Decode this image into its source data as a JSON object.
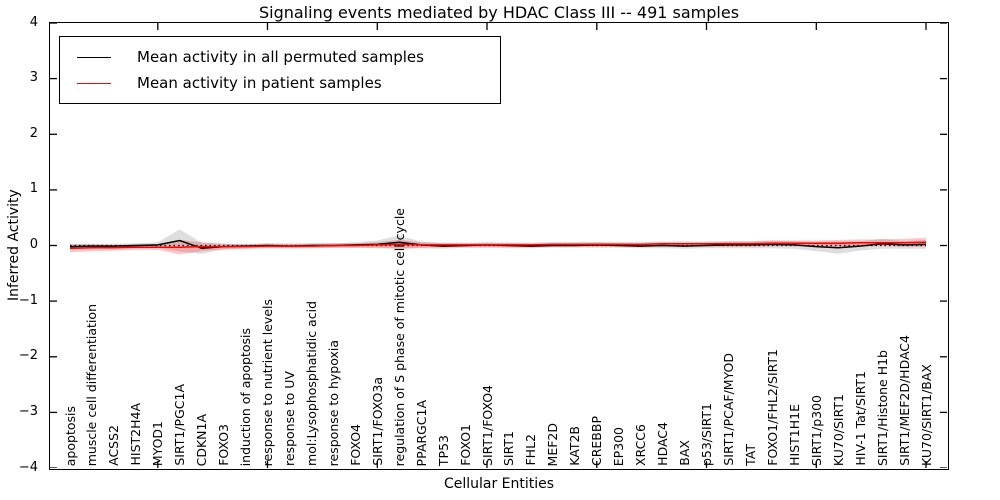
{
  "chart_data": {
    "type": "line",
    "title": "Signaling events mediated by HDAC Class III -- 491 samples",
    "xlabel": "Cellular Entities",
    "ylabel": "Inferred Activity",
    "ylim": [
      -4,
      4
    ],
    "yticks": [
      4,
      3,
      2,
      1,
      0,
      -1,
      -2,
      -3,
      -4
    ],
    "xtick_every": 5,
    "grid": false,
    "legend_position": "upper left",
    "zero_line": {
      "style": "dotted",
      "color": "#000000",
      "y": 0
    },
    "categories": [
      "apoptosis",
      "muscle cell differentiation",
      "ACSS2",
      "HIST2H4A",
      "MYOD1",
      "SIRT1/PGC1A",
      "CDKN1A",
      "FOXO3",
      "induction of apoptosis",
      "response to nutrient levels",
      "response to UV",
      "mol:Lysophosphatidic acid",
      "response to hypoxia",
      "FOXO4",
      "SIRT1/FOXO3a",
      "regulation of S phase of mitotic cell cycle",
      "PPARGC1A",
      "TP53",
      "FOXO1",
      "SIRT1/FOXO4",
      "SIRT1",
      "FHL2",
      "MEF2D",
      "KAT2B",
      "CREBBP",
      "EP300",
      "XRCC6",
      "HDAC4",
      "BAX",
      "p53/SIRT1",
      "SIRT1/PCAF/MYOD",
      "TAT",
      "FOXO1/FHL2/SIRT1",
      "HIST1H1E",
      "SIRT1/p300",
      "KU70/SIRT1",
      "HIV-1 Tat/SIRT1",
      "SIRT1/Histone H1b",
      "SIRT1/MEF2D/HDAC4",
      "KU70/SIRT1/BAX"
    ],
    "series": [
      {
        "name": "Mean activity in all permuted samples",
        "color": "#000000",
        "band_color": "rgba(0,0,0,0.13)",
        "values": [
          -0.02,
          -0.01,
          -0.01,
          0.0,
          0.01,
          0.09,
          -0.05,
          -0.02,
          -0.01,
          0.0,
          -0.01,
          0.0,
          0.0,
          0.01,
          0.02,
          0.06,
          0.01,
          -0.01,
          0.0,
          0.01,
          0.0,
          -0.01,
          0.0,
          0.0,
          0.01,
          0.0,
          -0.01,
          0.0,
          -0.01,
          0.0,
          0.01,
          0.01,
          0.02,
          0.01,
          -0.02,
          -0.04,
          -0.01,
          0.03,
          0.01,
          0.02
        ],
        "band": [
          0.05,
          0.04,
          0.04,
          0.04,
          0.05,
          0.2,
          0.1,
          0.05,
          0.04,
          0.04,
          0.04,
          0.04,
          0.04,
          0.05,
          0.07,
          0.12,
          0.06,
          0.05,
          0.04,
          0.05,
          0.05,
          0.04,
          0.04,
          0.04,
          0.05,
          0.04,
          0.04,
          0.05,
          0.05,
          0.05,
          0.06,
          0.06,
          0.07,
          0.07,
          0.08,
          0.11,
          0.08,
          0.09,
          0.07,
          0.08
        ]
      },
      {
        "name": "Mean activity in patient samples",
        "color": "#ff0000",
        "band_color": "rgba(255,0,0,0.22)",
        "values": [
          -0.05,
          -0.04,
          -0.04,
          -0.03,
          -0.03,
          -0.03,
          -0.02,
          -0.02,
          -0.02,
          -0.01,
          -0.01,
          -0.01,
          0.0,
          0.0,
          0.01,
          0.02,
          0.01,
          0.01,
          0.01,
          0.01,
          0.01,
          0.01,
          0.02,
          0.02,
          0.02,
          0.02,
          0.02,
          0.03,
          0.03,
          0.03,
          0.03,
          0.03,
          0.04,
          0.04,
          0.04,
          0.04,
          0.05,
          0.05,
          0.05,
          0.06
        ],
        "band": [
          0.07,
          0.06,
          0.05,
          0.05,
          0.05,
          0.13,
          0.08,
          0.05,
          0.04,
          0.04,
          0.04,
          0.04,
          0.04,
          0.04,
          0.05,
          0.08,
          0.05,
          0.04,
          0.04,
          0.04,
          0.04,
          0.04,
          0.04,
          0.04,
          0.04,
          0.04,
          0.04,
          0.04,
          0.04,
          0.04,
          0.05,
          0.05,
          0.05,
          0.05,
          0.05,
          0.06,
          0.06,
          0.06,
          0.07,
          0.08
        ]
      }
    ]
  }
}
